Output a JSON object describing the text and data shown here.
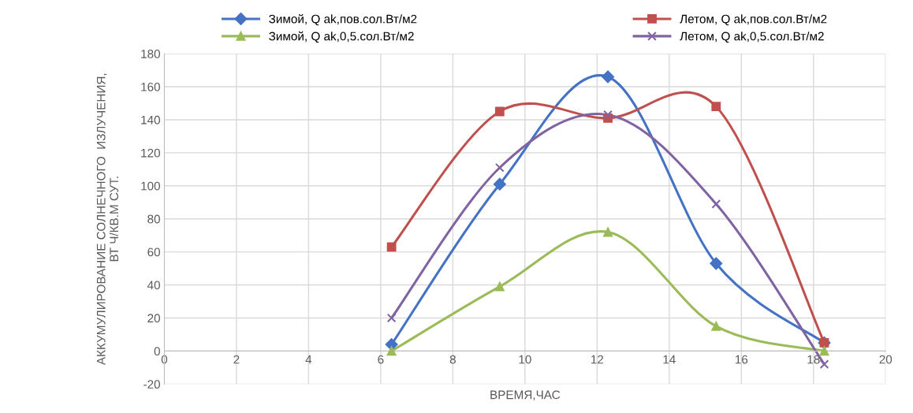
{
  "chart_data": {
    "type": "line",
    "xlabel": "ВРЕМЯ,ЧАС",
    "ylabel": "АККУМУЛИРОВАНИЕ СОЛНЕЧНОГО  ИЗЛУЧЕНИЯ,\nВТ Ч/КВ.М СУТ.",
    "x": [
      6.3,
      9.3,
      12.3,
      15.3,
      18.3
    ],
    "series": [
      {
        "name": "Зимой, Q ak,пов.сол.Вт/м2",
        "color": "#4472c4",
        "marker": "diamond",
        "values": [
          4,
          101,
          166,
          53,
          5
        ]
      },
      {
        "name": "Летом, Q ak,пов.сол.Вт/м2",
        "color": "#c0504d",
        "marker": "square",
        "values": [
          63,
          145,
          141,
          148,
          5
        ]
      },
      {
        "name": "Зимой, Q ak,0,5.сол.Вт/м2",
        "color": "#9bbb59",
        "marker": "triangle",
        "values": [
          0,
          39,
          72,
          15,
          0
        ]
      },
      {
        "name": "Летом, Q ak,0,5.сол.Вт/м2",
        "color": "#8064a2",
        "marker": "cross",
        "values": [
          20,
          111,
          143,
          89,
          -8
        ]
      }
    ],
    "xlim": [
      0,
      20
    ],
    "xticks": [
      0,
      2,
      4,
      6,
      8,
      10,
      12,
      14,
      16,
      18,
      20
    ],
    "ylim": [
      -20,
      180
    ],
    "yticks": [
      -20,
      0,
      20,
      40,
      60,
      80,
      100,
      120,
      140,
      160,
      180
    ],
    "grid": true,
    "legend": "top"
  }
}
